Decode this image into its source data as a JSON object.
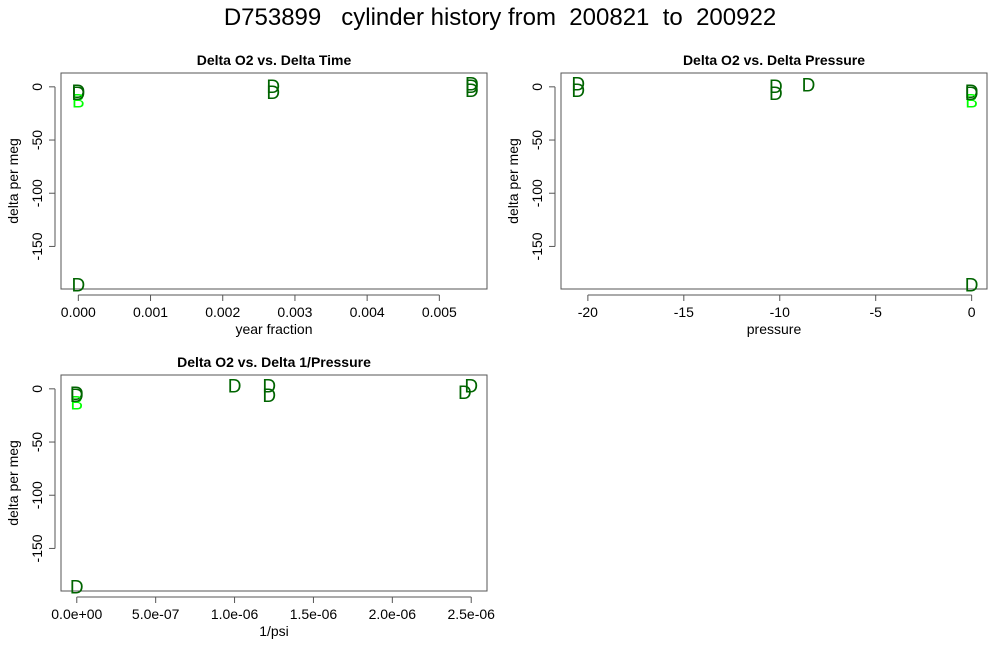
{
  "title": "D753899   cylinder history from  200821  to  200922",
  "colors": {
    "dark_green": "#006400",
    "light_green": "#00ff00",
    "axes": "#555555"
  },
  "chart_data": [
    {
      "type": "scatter",
      "title": "Delta O2 vs. Delta Time",
      "xlabel": "year fraction",
      "ylabel": "delta per meg",
      "xlim": [
        -0.00024,
        0.00566
      ],
      "ylim": [
        -190,
        13
      ],
      "xticks": [
        0.0,
        0.001,
        0.002,
        0.003,
        0.004,
        0.005
      ],
      "xtick_labels": [
        "0.000",
        "0.001",
        "0.002",
        "0.003",
        "0.004",
        "0.005"
      ],
      "yticks": [
        0,
        -50,
        -100,
        -150
      ],
      "ytick_labels": [
        "0",
        "-50",
        "-100",
        "-150"
      ],
      "points": [
        {
          "x": 0.0,
          "y": -4,
          "label": "D",
          "color": "#006400"
        },
        {
          "x": 0.0,
          "y": -13,
          "label": "B",
          "color": "#00ff00"
        },
        {
          "x": 0.0,
          "y": -6,
          "label": "D",
          "color": "#006400"
        },
        {
          "x": 0.0,
          "y": -186,
          "label": "D",
          "color": "#006400"
        },
        {
          "x": 0.0027,
          "y": 1,
          "label": "D",
          "color": "#006400"
        },
        {
          "x": 0.0027,
          "y": -5,
          "label": "D",
          "color": "#006400"
        },
        {
          "x": 0.00545,
          "y": 3,
          "label": "D",
          "color": "#006400"
        },
        {
          "x": 0.00545,
          "y": 1,
          "label": "D",
          "color": "#006400"
        },
        {
          "x": 0.00545,
          "y": -3,
          "label": "D",
          "color": "#006400"
        }
      ]
    },
    {
      "type": "scatter",
      "title": "Delta O2 vs. Delta Pressure",
      "xlabel": "pressure",
      "ylabel": "delta per meg",
      "xlim": [
        -21.4,
        0.8
      ],
      "ylim": [
        -190,
        13
      ],
      "xticks": [
        -20,
        -15,
        -10,
        -5,
        0
      ],
      "xtick_labels": [
        "-20",
        "-15",
        "-10",
        "-5",
        "0"
      ],
      "yticks": [
        0,
        -50,
        -100,
        -150
      ],
      "ytick_labels": [
        "0",
        "-50",
        "-100",
        "-150"
      ],
      "points": [
        {
          "x": -20.5,
          "y": 3,
          "label": "D",
          "color": "#006400"
        },
        {
          "x": -20.5,
          "y": -3,
          "label": "D",
          "color": "#006400"
        },
        {
          "x": -10.2,
          "y": 1,
          "label": "D",
          "color": "#006400"
        },
        {
          "x": -10.2,
          "y": -6,
          "label": "D",
          "color": "#006400"
        },
        {
          "x": -8.5,
          "y": 2,
          "label": "D",
          "color": "#006400"
        },
        {
          "x": 0.0,
          "y": -4,
          "label": "D",
          "color": "#006400"
        },
        {
          "x": 0.0,
          "y": -13,
          "label": "B",
          "color": "#00ff00"
        },
        {
          "x": 0.0,
          "y": -6,
          "label": "D",
          "color": "#006400"
        },
        {
          "x": 0.0,
          "y": -186,
          "label": "D",
          "color": "#006400"
        }
      ]
    },
    {
      "type": "scatter",
      "title": "Delta O2 vs. Delta 1/Pressure",
      "xlabel": "1/psi",
      "ylabel": "delta per meg",
      "xlim": [
        -1e-07,
        2.6e-06
      ],
      "ylim": [
        -190,
        13
      ],
      "xticks": [
        0,
        5e-07,
        1e-06,
        1.5e-06,
        2e-06,
        2.5e-06
      ],
      "xtick_labels": [
        "0.0e+00",
        "5.0e-07",
        "1.0e-06",
        "1.5e-06",
        "2.0e-06",
        "2.5e-06"
      ],
      "yticks": [
        0,
        -50,
        -100,
        -150
      ],
      "ytick_labels": [
        "0",
        "-50",
        "-100",
        "-150"
      ],
      "points": [
        {
          "x": 0.0,
          "y": -4,
          "label": "D",
          "color": "#006400"
        },
        {
          "x": 0.0,
          "y": -13,
          "label": "B",
          "color": "#00ff00"
        },
        {
          "x": 0.0,
          "y": -6,
          "label": "D",
          "color": "#006400"
        },
        {
          "x": 0.0,
          "y": -186,
          "label": "D",
          "color": "#006400"
        },
        {
          "x": 1e-06,
          "y": 3,
          "label": "D",
          "color": "#006400"
        },
        {
          "x": 1.22e-06,
          "y": 3,
          "label": "D",
          "color": "#006400"
        },
        {
          "x": 1.22e-06,
          "y": -6,
          "label": "D",
          "color": "#006400"
        },
        {
          "x": 2.46e-06,
          "y": -3,
          "label": "D",
          "color": "#006400"
        },
        {
          "x": 2.5e-06,
          "y": 3,
          "label": "D",
          "color": "#006400"
        }
      ]
    }
  ]
}
